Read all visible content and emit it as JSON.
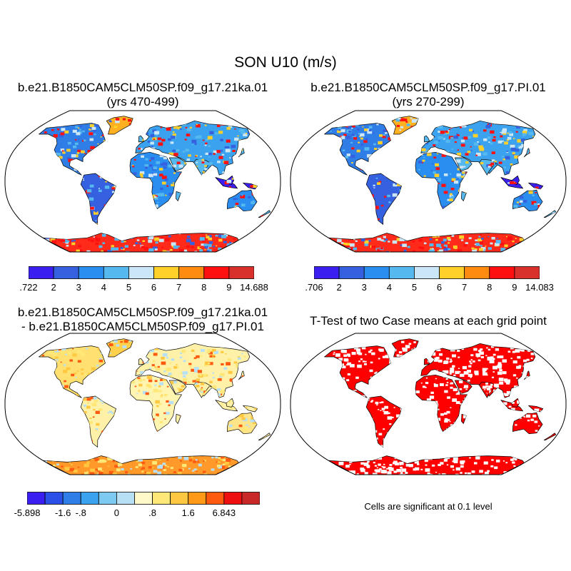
{
  "title": "SON U10 (m/s)",
  "panels": [
    {
      "id": "case1",
      "title_line1": "b.e21.B1850CAM5CLM50SP.f09_g17.21ka.01",
      "title_line2": "(yrs 470-499)",
      "colorbar": {
        "labels": [
          ".722",
          "2",
          "3",
          "4",
          "5",
          "6",
          "7",
          "8",
          "9",
          "14.688"
        ],
        "colors": [
          "#3a1ff0",
          "#3560e0",
          "#2a8ef0",
          "#55b8ee",
          "#cbe6f6",
          "#ffd02a",
          "#ff8c10",
          "#ff1010",
          "#d8302a"
        ]
      }
    },
    {
      "id": "case2",
      "title_line1": "b.e21.B1850CAM5CLM50SP.f09_g17.PI.01",
      "title_line2": "(yrs 270-299)",
      "colorbar": {
        "labels": [
          ".706",
          "2",
          "3",
          "4",
          "5",
          "6",
          "7",
          "8",
          "9",
          "14.083"
        ],
        "colors": [
          "#3a1ff0",
          "#3560e0",
          "#2a8ef0",
          "#55b8ee",
          "#cbe6f6",
          "#ffd02a",
          "#ff8c10",
          "#ff1010",
          "#d8302a"
        ]
      }
    },
    {
      "id": "difference",
      "title_line1": "b.e21.B1850CAM5CLM50SP.f09_g17.21ka.01",
      "title_line2": "- b.e21.B1850CAM5CLM50SP.f09_g17.PI.01",
      "colorbar": {
        "labels": [
          "-5.898",
          "",
          "-1.6",
          "-.8",
          "",
          "0",
          "",
          ".8",
          "",
          "1.6",
          "",
          "6.843"
        ],
        "colors": [
          "#3a1ff0",
          "#2a50e8",
          "#2f7ee8",
          "#3aa2ee",
          "#7ccaf2",
          "#b7e0f4",
          "#fff8c8",
          "#ffe878",
          "#ffc840",
          "#ff9a18",
          "#ff5a10",
          "#ee1010",
          "#c82828"
        ]
      }
    },
    {
      "id": "ttest",
      "title_line1": "T-Test of two Case means at each grid point",
      "note": "Cells are significant at 0.1 level",
      "colors": [
        "#ff0000"
      ]
    }
  ]
}
